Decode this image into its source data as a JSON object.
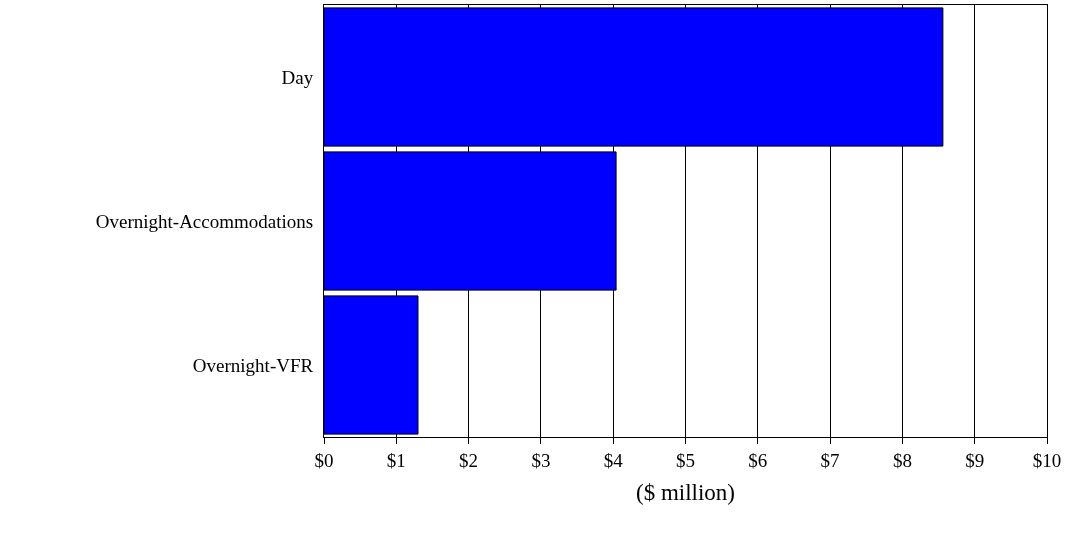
{
  "chart_data": {
    "type": "bar",
    "orientation": "horizontal",
    "categories": [
      "Day",
      "Overnight-Accommodations",
      "Overnight-VFR"
    ],
    "values": [
      8.56,
      4.04,
      1.3
    ],
    "color": "#0000ff",
    "xlabel": "($ million)",
    "xlim": [
      0,
      10
    ],
    "xticks": [
      {
        "value": 0,
        "label": "$0"
      },
      {
        "value": 1,
        "label": "$1"
      },
      {
        "value": 2,
        "label": "$2"
      },
      {
        "value": 3,
        "label": "$3"
      },
      {
        "value": 4,
        "label": "$4"
      },
      {
        "value": 5,
        "label": "$5"
      },
      {
        "value": 6,
        "label": "$6"
      },
      {
        "value": 7,
        "label": "$7"
      },
      {
        "value": 8,
        "label": "$8"
      },
      {
        "value": 9,
        "label": "$9"
      },
      {
        "value": 10,
        "label": "$10"
      }
    ],
    "grid": "x"
  }
}
